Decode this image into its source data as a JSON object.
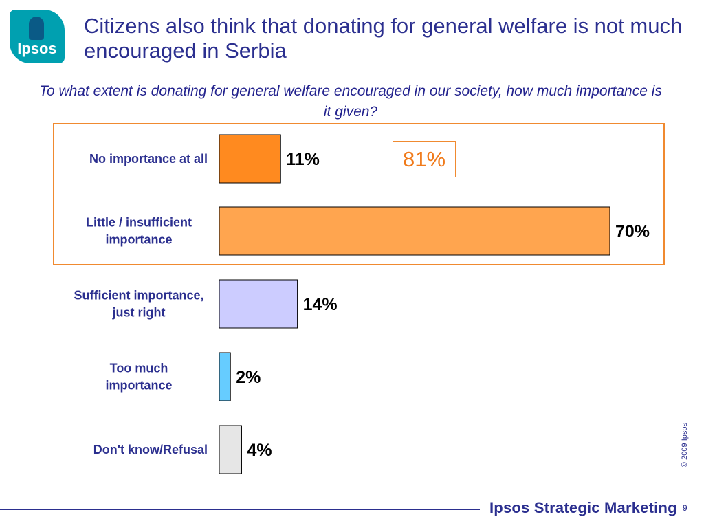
{
  "logo": {
    "text": "Ipsos"
  },
  "title": "Citizens also think that donating for general welfare is not much encouraged in Serbia",
  "question": "To what extent is donating for general welfare encouraged  in our society, how much importance is it given?",
  "total_label": "81%",
  "colors": {
    "title": "#2b2f8f",
    "highlight": "#f08a30",
    "bar_colors": [
      "#ff8a1f",
      "#ffa54f",
      "#ccccff",
      "#66ccff",
      "#e6e6e6"
    ]
  },
  "chart_data": {
    "type": "bar",
    "orientation": "horizontal",
    "categories": [
      [
        "No importance at all"
      ],
      [
        "Little / insufficient",
        "importance"
      ],
      [
        "Sufficient importance,",
        "just right"
      ],
      [
        "Too much",
        "importance"
      ],
      [
        "Don't know/Refusal"
      ]
    ],
    "values": [
      11,
      70,
      14,
      2,
      4
    ],
    "value_labels": [
      "11%",
      "70%",
      "14%",
      "2%",
      "4%"
    ],
    "xlim": [
      0,
      70
    ],
    "grid": false,
    "highlight": {
      "categories": [
        "No importance at all",
        "Little / insufficient importance"
      ],
      "total": "81%"
    }
  },
  "footer": {
    "brand": "Ipsos Strategic Marketing",
    "page": "9",
    "copyright": "© 2009 Ipsos"
  }
}
